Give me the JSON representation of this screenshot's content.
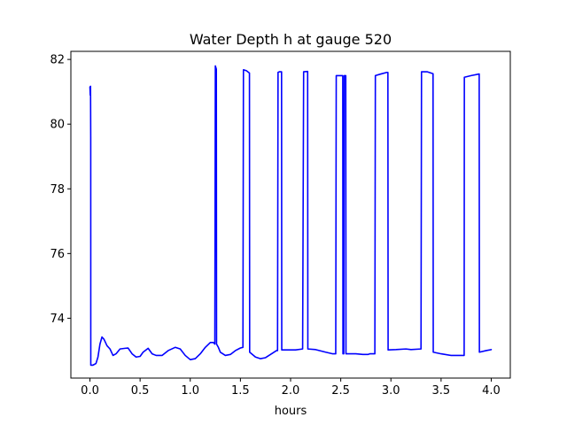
{
  "chart_data": {
    "type": "line",
    "title": "Water Depth h at gauge 520",
    "xlabel": "hours",
    "ylabel": "",
    "xlim": [
      -0.19,
      4.19
    ],
    "ylim": [
      72.15,
      82.25
    ],
    "xticks": [
      0.0,
      0.5,
      1.0,
      1.5,
      2.0,
      2.5,
      3.0,
      3.5,
      4.0
    ],
    "xtick_labels": [
      "0.0",
      "0.5",
      "1.0",
      "1.5",
      "2.0",
      "2.5",
      "3.0",
      "3.5",
      "4.0"
    ],
    "yticks": [
      74,
      76,
      78,
      80,
      82
    ],
    "ytick_labels": [
      "74",
      "76",
      "78",
      "80",
      "82"
    ],
    "grid": false,
    "legend": "none",
    "series": [
      {
        "color": "#0000ff",
        "points": [
          [
            0.0,
            81.15
          ],
          [
            0.003,
            80.9
          ],
          [
            0.006,
            81.17
          ],
          [
            0.008,
            79.6
          ],
          [
            0.0085,
            72.55
          ],
          [
            0.03,
            72.55
          ],
          [
            0.06,
            72.6
          ],
          [
            0.08,
            72.8
          ],
          [
            0.1,
            73.2
          ],
          [
            0.12,
            73.42
          ],
          [
            0.14,
            73.35
          ],
          [
            0.17,
            73.15
          ],
          [
            0.2,
            73.05
          ],
          [
            0.23,
            72.85
          ],
          [
            0.26,
            72.9
          ],
          [
            0.3,
            73.05
          ],
          [
            0.35,
            73.07
          ],
          [
            0.38,
            73.08
          ],
          [
            0.42,
            72.9
          ],
          [
            0.46,
            72.8
          ],
          [
            0.5,
            72.82
          ],
          [
            0.53,
            72.95
          ],
          [
            0.58,
            73.07
          ],
          [
            0.62,
            72.9
          ],
          [
            0.66,
            72.85
          ],
          [
            0.72,
            72.85
          ],
          [
            0.78,
            73.0
          ],
          [
            0.85,
            73.1
          ],
          [
            0.9,
            73.05
          ],
          [
            0.95,
            72.85
          ],
          [
            1.0,
            72.72
          ],
          [
            1.05,
            72.75
          ],
          [
            1.1,
            72.9
          ],
          [
            1.15,
            73.1
          ],
          [
            1.2,
            73.25
          ],
          [
            1.23,
            73.25
          ],
          [
            1.245,
            73.2
          ],
          [
            1.25,
            81.8
          ],
          [
            1.255,
            81.75
          ],
          [
            1.26,
            81.7
          ],
          [
            1.262,
            73.2
          ],
          [
            1.28,
            73.1
          ],
          [
            1.3,
            72.95
          ],
          [
            1.35,
            72.85
          ],
          [
            1.4,
            72.88
          ],
          [
            1.45,
            73.0
          ],
          [
            1.5,
            73.08
          ],
          [
            1.525,
            73.1
          ],
          [
            1.53,
            81.68
          ],
          [
            1.56,
            81.65
          ],
          [
            1.59,
            81.58
          ],
          [
            1.592,
            72.95
          ],
          [
            1.65,
            72.8
          ],
          [
            1.7,
            72.75
          ],
          [
            1.75,
            72.78
          ],
          [
            1.8,
            72.88
          ],
          [
            1.86,
            73.0
          ],
          [
            1.87,
            73.0
          ],
          [
            1.875,
            81.6
          ],
          [
            1.89,
            81.62
          ],
          [
            1.91,
            81.62
          ],
          [
            1.912,
            73.02
          ],
          [
            2.0,
            73.02
          ],
          [
            2.05,
            73.02
          ],
          [
            2.12,
            73.05
          ],
          [
            2.13,
            81.62
          ],
          [
            2.17,
            81.63
          ],
          [
            2.172,
            73.05
          ],
          [
            2.25,
            73.03
          ],
          [
            2.35,
            72.95
          ],
          [
            2.42,
            72.9
          ],
          [
            2.45,
            72.9
          ],
          [
            2.455,
            81.5
          ],
          [
            2.52,
            81.5
          ],
          [
            2.522,
            72.9
          ],
          [
            2.53,
            72.9
          ],
          [
            2.535,
            81.5
          ],
          [
            2.55,
            81.5
          ],
          [
            2.552,
            72.9
          ],
          [
            2.65,
            72.9
          ],
          [
            2.72,
            72.88
          ],
          [
            2.77,
            72.88
          ],
          [
            2.79,
            72.9
          ],
          [
            2.84,
            72.9
          ],
          [
            2.845,
            81.5
          ],
          [
            2.9,
            81.55
          ],
          [
            2.96,
            81.6
          ],
          [
            2.97,
            81.6
          ],
          [
            2.972,
            73.02
          ],
          [
            3.05,
            73.03
          ],
          [
            3.15,
            73.05
          ],
          [
            3.2,
            73.03
          ],
          [
            3.3,
            73.05
          ],
          [
            3.305,
            81.62
          ],
          [
            3.36,
            81.62
          ],
          [
            3.42,
            81.56
          ],
          [
            3.422,
            72.95
          ],
          [
            3.5,
            72.9
          ],
          [
            3.6,
            72.85
          ],
          [
            3.65,
            72.85
          ],
          [
            3.7,
            72.85
          ],
          [
            3.73,
            72.85
          ],
          [
            3.732,
            81.45
          ],
          [
            3.8,
            81.5
          ],
          [
            3.88,
            81.55
          ],
          [
            3.882,
            72.95
          ],
          [
            3.95,
            73.0
          ],
          [
            4.0,
            73.03
          ]
        ]
      }
    ]
  }
}
